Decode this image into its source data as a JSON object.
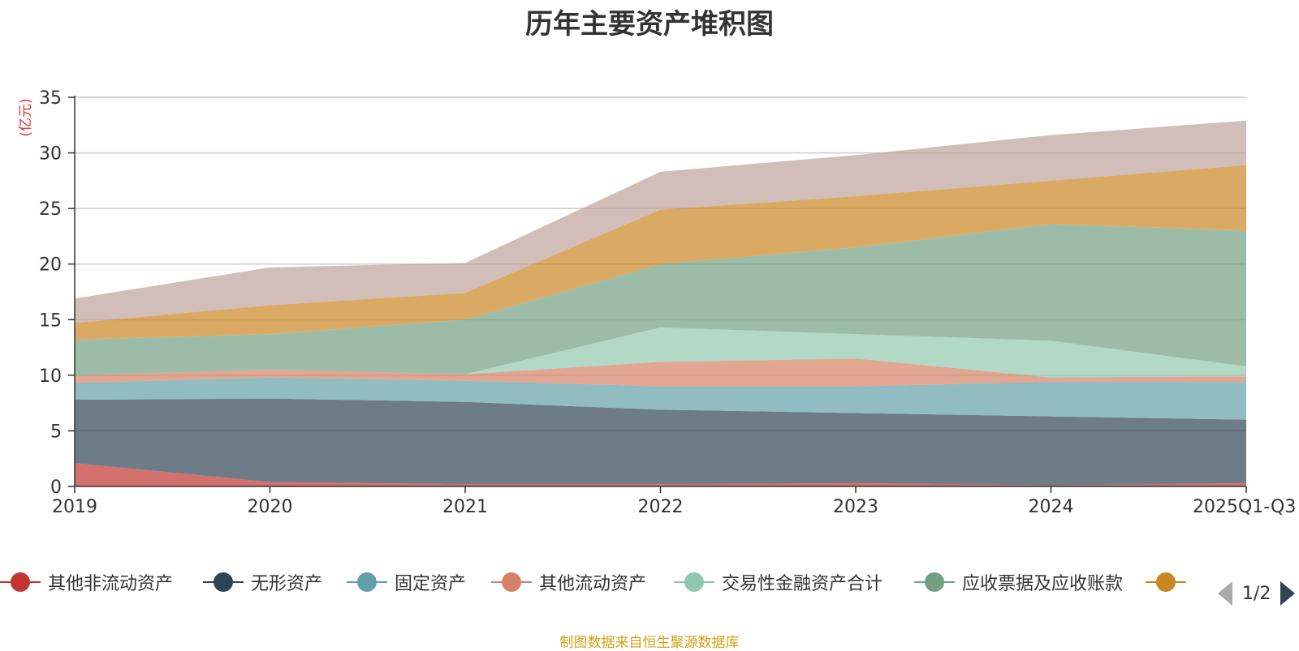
{
  "chart_data": {
    "type": "area",
    "stacked": true,
    "title": "历年主要资产堆积图",
    "ylabel": "(亿元)",
    "xlabel": "",
    "ylim": [
      0,
      35
    ],
    "yticks": [
      0,
      5,
      10,
      15,
      20,
      25,
      30,
      35
    ],
    "categories": [
      "2019",
      "2020",
      "2021",
      "2022",
      "2023",
      "2024",
      "2025Q1-Q3"
    ],
    "series": [
      {
        "name": "其他非流动资产",
        "color": "#c23531",
        "values": [
          2.1,
          0.4,
          0.2,
          0.2,
          0.3,
          0.1,
          0.3
        ]
      },
      {
        "name": "无形资产",
        "color": "#2f4554",
        "values": [
          5.7,
          7.5,
          7.4,
          6.7,
          6.3,
          6.2,
          5.7
        ]
      },
      {
        "name": "固定资产",
        "color": "#61a0a8",
        "values": [
          1.5,
          1.9,
          1.9,
          2.1,
          2.4,
          3.1,
          3.4
        ]
      },
      {
        "name": "其他流动资产",
        "color": "#d48265",
        "values": [
          0.7,
          0.7,
          0.6,
          2.2,
          2.5,
          0.4,
          0.5
        ]
      },
      {
        "name": "交易性金融资产合计",
        "color": "#91c7ae",
        "values": [
          0.0,
          0.0,
          0.0,
          3.1,
          2.2,
          3.3,
          0.9
        ]
      },
      {
        "name": "应收票据及应收账款",
        "color": "#749f83",
        "values": [
          3.2,
          3.2,
          4.9,
          5.7,
          7.8,
          10.5,
          12.2
        ]
      },
      {
        "name": "",
        "color": "#ca8622",
        "values": [
          1.5,
          2.6,
          2.4,
          4.9,
          4.6,
          3.9,
          5.9
        ]
      },
      {
        "name": "",
        "color": "#bda29a",
        "values": [
          2.2,
          3.4,
          2.7,
          3.4,
          3.7,
          4.1,
          4.0
        ]
      }
    ],
    "legend_position": "bottom"
  },
  "legend": {
    "page": "1/2"
  },
  "source": "制图数据来自恒生聚源数据库"
}
